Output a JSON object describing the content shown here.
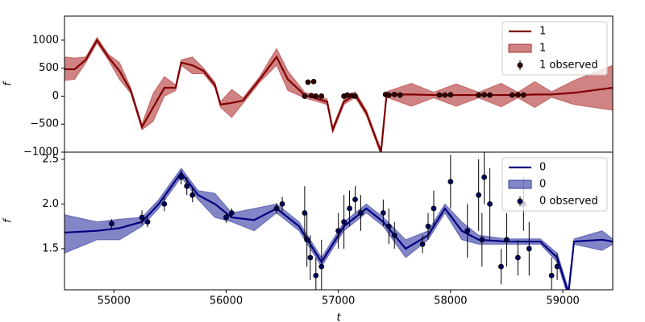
{
  "chart_data": [
    {
      "type": "line",
      "ylabel": "f",
      "ylim": [
        -1000,
        1430
      ],
      "yticks": [
        {
          "value": -1000,
          "label": "−1000"
        },
        {
          "value": -500,
          "label": "−500"
        },
        0,
        500,
        1000
      ],
      "xlim": [
        54560,
        59445
      ],
      "legend": "upper right",
      "series": [
        {
          "name": "1",
          "kind": "line",
          "color": "#800000",
          "x": [
            54560,
            54650,
            54750,
            54850,
            54950,
            55050,
            55150,
            55250,
            55350,
            55450,
            55550,
            55600,
            55700,
            55800,
            55900,
            55950,
            56050,
            56150,
            56300,
            56450,
            56550,
            56700,
            56900,
            56950,
            57050,
            57150,
            57250,
            57380,
            57430,
            57650,
            57850,
            58050,
            58250,
            58450,
            58600,
            58750,
            58900,
            59100,
            59445
          ],
          "values": [
            480,
            480,
            650,
            1000,
            700,
            450,
            100,
            -550,
            -200,
            150,
            150,
            600,
            550,
            450,
            200,
            -150,
            -120,
            -80,
            300,
            700,
            300,
            20,
            -100,
            -600,
            -100,
            30,
            -300,
            -1000,
            30,
            30,
            20,
            20,
            20,
            20,
            20,
            30,
            30,
            60,
            150
          ]
        },
        {
          "name": "1",
          "kind": "band",
          "color": "#b03030",
          "x": [
            54560,
            54650,
            54750,
            54850,
            54950,
            55050,
            55150,
            55250,
            55350,
            55450,
            55550,
            55600,
            55700,
            55800,
            55900,
            55950,
            56050,
            56150,
            56300,
            56450,
            56550,
            56700,
            56900,
            56950,
            57050,
            57150,
            57250,
            57380,
            57430,
            57650,
            57850,
            58050,
            58250,
            58450,
            58600,
            58750,
            58900,
            59100,
            59445
          ],
          "lower": [
            280,
            300,
            600,
            950,
            650,
            300,
            50,
            -600,
            -450,
            0,
            100,
            550,
            400,
            400,
            150,
            -200,
            -380,
            -130,
            250,
            550,
            100,
            -30,
            -150,
            -650,
            -150,
            -20,
            -350,
            -1050,
            -20,
            -180,
            -30,
            -180,
            -30,
            -190,
            -30,
            -200,
            -20,
            -150,
            -250
          ],
          "upper": [
            700,
            680,
            700,
            1050,
            750,
            600,
            150,
            -500,
            50,
            350,
            200,
            650,
            700,
            500,
            250,
            -100,
            120,
            -30,
            350,
            850,
            450,
            70,
            -50,
            -550,
            -50,
            80,
            -250,
            -950,
            80,
            230,
            70,
            220,
            70,
            230,
            70,
            260,
            80,
            280,
            550
          ]
        },
        {
          "name": "1 observed",
          "kind": "errorbar",
          "color": "#3a0000",
          "x": [
            56700,
            56730,
            56760,
            56780,
            56800,
            56850,
            57050,
            57080,
            57120,
            57150,
            57420,
            57450,
            57500,
            57550,
            57900,
            57950,
            58000,
            58250,
            58300,
            58350,
            58550,
            58600,
            58650
          ],
          "values": [
            0,
            250,
            10,
            260,
            0,
            0,
            0,
            20,
            10,
            0,
            30,
            20,
            30,
            20,
            20,
            20,
            25,
            20,
            25,
            20,
            20,
            25,
            20
          ],
          "errors": [
            30,
            40,
            30,
            40,
            30,
            30,
            30,
            30,
            30,
            30,
            30,
            30,
            30,
            30,
            30,
            30,
            30,
            30,
            30,
            30,
            30,
            30,
            30
          ]
        }
      ]
    },
    {
      "type": "line",
      "ylabel": "f",
      "xlabel": "t",
      "ylim": [
        1.04,
        2.58
      ],
      "yticks": [
        1.5,
        {
          "value": 2,
          "label": "2.0"
        },
        2.5
      ],
      "xlim": [
        54560,
        59445
      ],
      "xticks": [
        55000,
        56000,
        57000,
        58000,
        59000
      ],
      "legend": "upper right",
      "series": [
        {
          "name": "0",
          "kind": "line",
          "color": "#000080",
          "x": [
            54560,
            54850,
            55050,
            55250,
            55400,
            55600,
            55750,
            55900,
            56050,
            56250,
            56450,
            56650,
            56850,
            57050,
            57250,
            57400,
            57600,
            57800,
            57950,
            58100,
            58250,
            58500,
            58800,
            58950,
            59050,
            59100,
            59350,
            59445
          ],
          "values": [
            1.68,
            1.7,
            1.73,
            1.8,
            2.0,
            2.35,
            2.1,
            2.0,
            1.85,
            1.82,
            1.95,
            1.75,
            1.35,
            1.75,
            1.95,
            1.8,
            1.5,
            1.65,
            1.95,
            1.7,
            1.6,
            1.58,
            1.58,
            1.4,
            1.0,
            1.58,
            1.6,
            1.58
          ]
        },
        {
          "name": "0",
          "kind": "band",
          "color": "#3036a0",
          "x": [
            54560,
            54850,
            55050,
            55250,
            55400,
            55600,
            55750,
            55900,
            56050,
            56250,
            56450,
            56650,
            56850,
            57050,
            57250,
            57400,
            57600,
            57800,
            57950,
            58100,
            58250,
            58500,
            58800,
            58950,
            59050,
            59100,
            59350,
            59445
          ],
          "lower": [
            1.45,
            1.6,
            1.6,
            1.75,
            1.95,
            2.3,
            2.05,
            1.85,
            1.8,
            1.7,
            1.9,
            1.7,
            1.3,
            1.7,
            1.9,
            1.75,
            1.4,
            1.6,
            1.9,
            1.6,
            1.55,
            1.55,
            1.55,
            1.35,
            0.95,
            1.55,
            1.48,
            1.55
          ],
          "upper": [
            1.88,
            1.8,
            1.83,
            1.85,
            2.05,
            2.4,
            2.15,
            2.12,
            1.9,
            1.95,
            2.0,
            1.8,
            1.4,
            1.8,
            2.0,
            1.85,
            1.6,
            1.7,
            2.0,
            1.8,
            1.65,
            1.61,
            1.61,
            1.45,
            1.05,
            1.61,
            1.7,
            1.61
          ]
        },
        {
          "name": "0 observed",
          "kind": "errorbar",
          "color": "#000060",
          "x": [
            54980,
            55250,
            55300,
            55450,
            55600,
            55650,
            55700,
            56000,
            56050,
            56450,
            56500,
            56700,
            56720,
            56750,
            56800,
            56850,
            57000,
            57050,
            57100,
            57150,
            57200,
            57400,
            57450,
            57500,
            57750,
            57800,
            57850,
            58000,
            58150,
            58250,
            58280,
            58300,
            58350,
            58450,
            58500,
            58600,
            58650,
            58700,
            58900,
            58950
          ],
          "values": [
            1.78,
            1.85,
            1.8,
            2.0,
            2.3,
            2.2,
            2.1,
            1.85,
            1.9,
            1.95,
            2.0,
            1.9,
            1.6,
            1.4,
            1.2,
            1.3,
            1.7,
            1.8,
            1.95,
            2.05,
            1.9,
            1.9,
            1.75,
            1.65,
            1.55,
            1.75,
            1.95,
            2.25,
            1.7,
            2.1,
            1.6,
            2.3,
            2.0,
            1.3,
            1.6,
            1.4,
            2.0,
            1.5,
            1.2,
            1.3
          ],
          "errors": [
            0.05,
            0.08,
            0.06,
            0.08,
            0.08,
            0.1,
            0.08,
            0.06,
            0.05,
            0.06,
            0.08,
            0.3,
            0.3,
            0.25,
            0.2,
            0.3,
            0.2,
            0.3,
            0.2,
            0.15,
            0.2,
            0.15,
            0.2,
            0.15,
            0.1,
            0.15,
            0.2,
            0.3,
            0.3,
            0.4,
            0.3,
            0.3,
            0.4,
            0.2,
            0.3,
            0.2,
            0.3,
            0.3,
            0.2,
            0.15
          ]
        }
      ]
    }
  ]
}
